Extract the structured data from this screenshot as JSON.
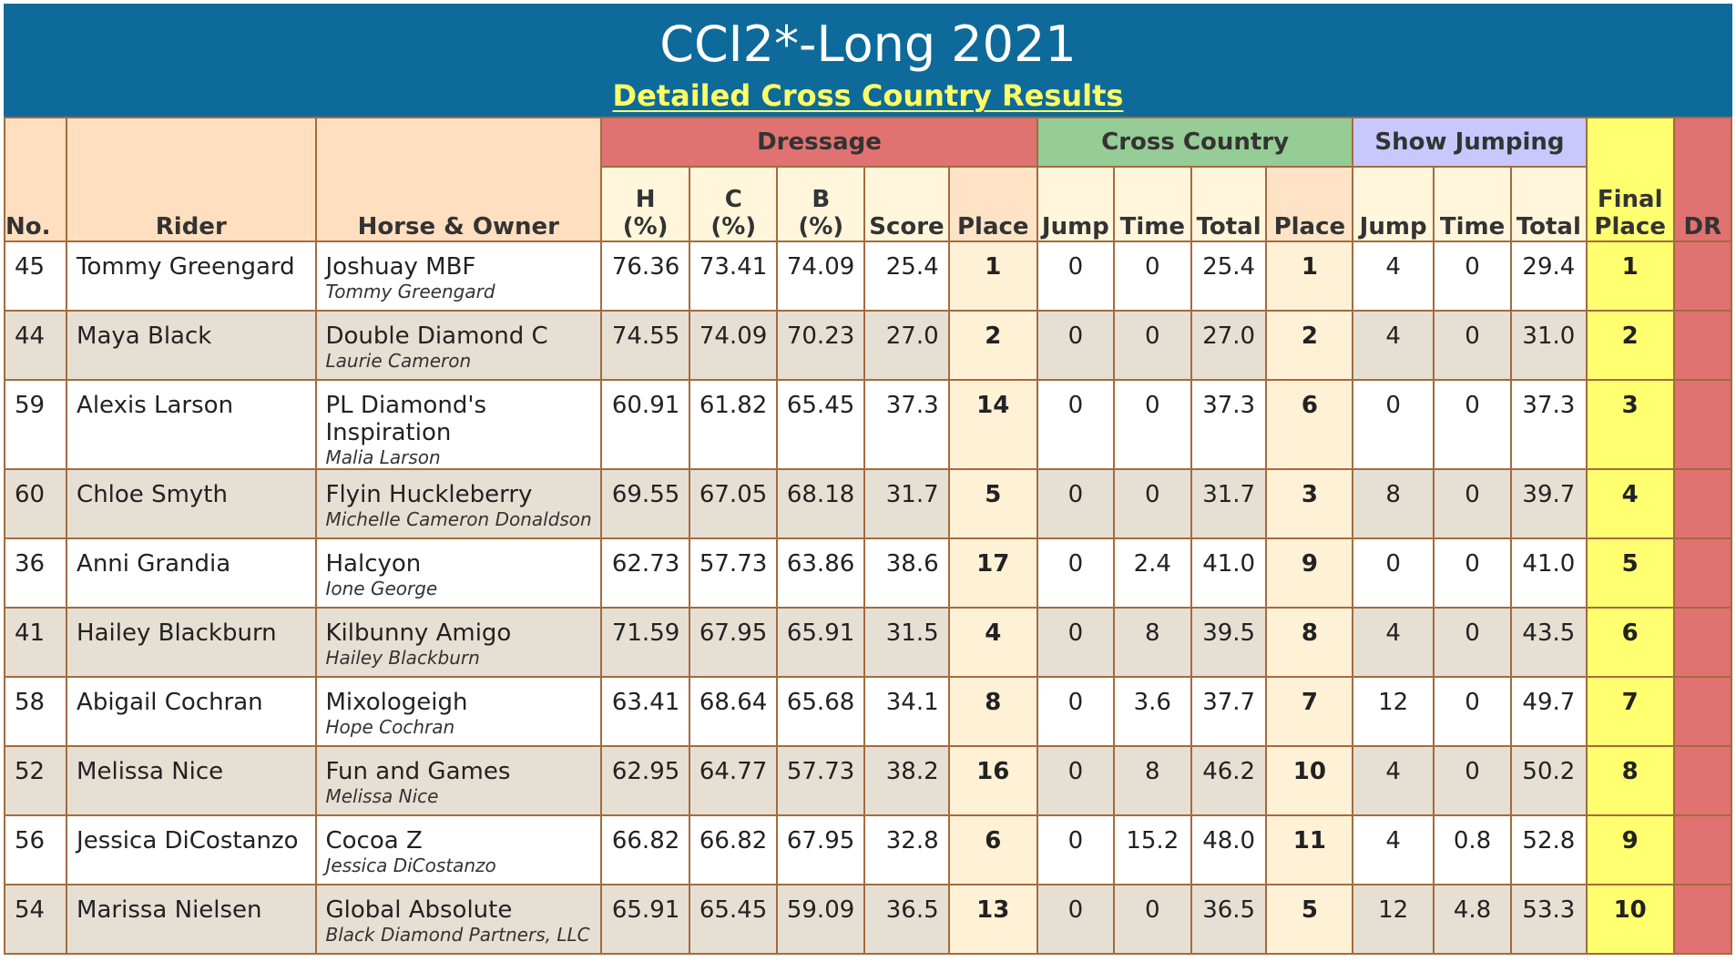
{
  "header": {
    "title": "CCI2*-Long 2021",
    "subtitle": "Detailed Cross Country Results"
  },
  "colors": {
    "banner": "#0e6a9a",
    "subtitle": "#ffff66",
    "dressage": "#e07272",
    "cross_country": "#96cc96",
    "show_jumping": "#c8c8ff",
    "final_place": "#ffff70",
    "row_alt": "#e6dfd4"
  },
  "table": {
    "columns": {
      "no": "No.",
      "rider": "Rider",
      "horse_owner": "Horse & Owner",
      "final_place": "Final Place",
      "dr": "DR"
    },
    "groups": {
      "dressage": {
        "label": "Dressage",
        "h_line1": "H",
        "h_line2": "(%)",
        "c_line1": "C",
        "c_line2": "(%)",
        "b_line1": "B",
        "b_line2": "(%)",
        "score": "Score",
        "place": "Place"
      },
      "cross_country": {
        "label": "Cross Country",
        "jump": "Jump",
        "time": "Time",
        "total": "Total",
        "place": "Place"
      },
      "show_jumping": {
        "label": "Show Jumping",
        "jump": "Jump",
        "time": "Time",
        "total": "Total"
      }
    },
    "rows": [
      {
        "no": "45",
        "rider": "Tommy Greengard",
        "horse": "Joshuay MBF",
        "owner": "Tommy Greengard",
        "h": "76.36",
        "c": "73.41",
        "b": "74.09",
        "score": "25.4",
        "d_place": "1",
        "xc_jump": "0",
        "xc_time": "0",
        "xc_total": "25.4",
        "xc_place": "1",
        "sj_jump": "4",
        "sj_time": "0",
        "sj_total": "29.4",
        "final": "1",
        "dr": ""
      },
      {
        "no": "44",
        "rider": "Maya Black",
        "horse": "Double Diamond C",
        "owner": "Laurie Cameron",
        "h": "74.55",
        "c": "74.09",
        "b": "70.23",
        "score": "27.0",
        "d_place": "2",
        "xc_jump": "0",
        "xc_time": "0",
        "xc_total": "27.0",
        "xc_place": "2",
        "sj_jump": "4",
        "sj_time": "0",
        "sj_total": "31.0",
        "final": "2",
        "dr": ""
      },
      {
        "no": "59",
        "rider": "Alexis Larson",
        "horse": "PL Diamond's Inspiration",
        "owner": "Malia Larson",
        "h": "60.91",
        "c": "61.82",
        "b": "65.45",
        "score": "37.3",
        "d_place": "14",
        "xc_jump": "0",
        "xc_time": "0",
        "xc_total": "37.3",
        "xc_place": "6",
        "sj_jump": "0",
        "sj_time": "0",
        "sj_total": "37.3",
        "final": "3",
        "dr": ""
      },
      {
        "no": "60",
        "rider": "Chloe Smyth",
        "horse": "Flyin Huckleberry",
        "owner": "Michelle Cameron Donaldson",
        "h": "69.55",
        "c": "67.05",
        "b": "68.18",
        "score": "31.7",
        "d_place": "5",
        "xc_jump": "0",
        "xc_time": "0",
        "xc_total": "31.7",
        "xc_place": "3",
        "sj_jump": "8",
        "sj_time": "0",
        "sj_total": "39.7",
        "final": "4",
        "dr": ""
      },
      {
        "no": "36",
        "rider": "Anni Grandia",
        "horse": "Halcyon",
        "owner": "Ione George",
        "h": "62.73",
        "c": "57.73",
        "b": "63.86",
        "score": "38.6",
        "d_place": "17",
        "xc_jump": "0",
        "xc_time": "2.4",
        "xc_total": "41.0",
        "xc_place": "9",
        "sj_jump": "0",
        "sj_time": "0",
        "sj_total": "41.0",
        "final": "5",
        "dr": ""
      },
      {
        "no": "41",
        "rider": "Hailey Blackburn",
        "horse": "Kilbunny Amigo",
        "owner": "Hailey Blackburn",
        "h": "71.59",
        "c": "67.95",
        "b": "65.91",
        "score": "31.5",
        "d_place": "4",
        "xc_jump": "0",
        "xc_time": "8",
        "xc_total": "39.5",
        "xc_place": "8",
        "sj_jump": "4",
        "sj_time": "0",
        "sj_total": "43.5",
        "final": "6",
        "dr": ""
      },
      {
        "no": "58",
        "rider": "Abigail Cochran",
        "horse": "Mixologeigh",
        "owner": "Hope Cochran",
        "h": "63.41",
        "c": "68.64",
        "b": "65.68",
        "score": "34.1",
        "d_place": "8",
        "xc_jump": "0",
        "xc_time": "3.6",
        "xc_total": "37.7",
        "xc_place": "7",
        "sj_jump": "12",
        "sj_time": "0",
        "sj_total": "49.7",
        "final": "7",
        "dr": ""
      },
      {
        "no": "52",
        "rider": "Melissa Nice",
        "horse": "Fun and Games",
        "owner": "Melissa Nice",
        "h": "62.95",
        "c": "64.77",
        "b": "57.73",
        "score": "38.2",
        "d_place": "16",
        "xc_jump": "0",
        "xc_time": "8",
        "xc_total": "46.2",
        "xc_place": "10",
        "sj_jump": "4",
        "sj_time": "0",
        "sj_total": "50.2",
        "final": "8",
        "dr": ""
      },
      {
        "no": "56",
        "rider": "Jessica DiCostanzo",
        "horse": "Cocoa Z",
        "owner": "Jessica DiCostanzo",
        "h": "66.82",
        "c": "66.82",
        "b": "67.95",
        "score": "32.8",
        "d_place": "6",
        "xc_jump": "0",
        "xc_time": "15.2",
        "xc_total": "48.0",
        "xc_place": "11",
        "sj_jump": "4",
        "sj_time": "0.8",
        "sj_total": "52.8",
        "final": "9",
        "dr": ""
      },
      {
        "no": "54",
        "rider": "Marissa Nielsen",
        "horse": "Global Absolute",
        "owner": "Black Diamond Partners, LLC",
        "h": "65.91",
        "c": "65.45",
        "b": "59.09",
        "score": "36.5",
        "d_place": "13",
        "xc_jump": "0",
        "xc_time": "0",
        "xc_total": "36.5",
        "xc_place": "5",
        "sj_jump": "12",
        "sj_time": "4.8",
        "sj_total": "53.3",
        "final": "10",
        "dr": ""
      }
    ]
  }
}
